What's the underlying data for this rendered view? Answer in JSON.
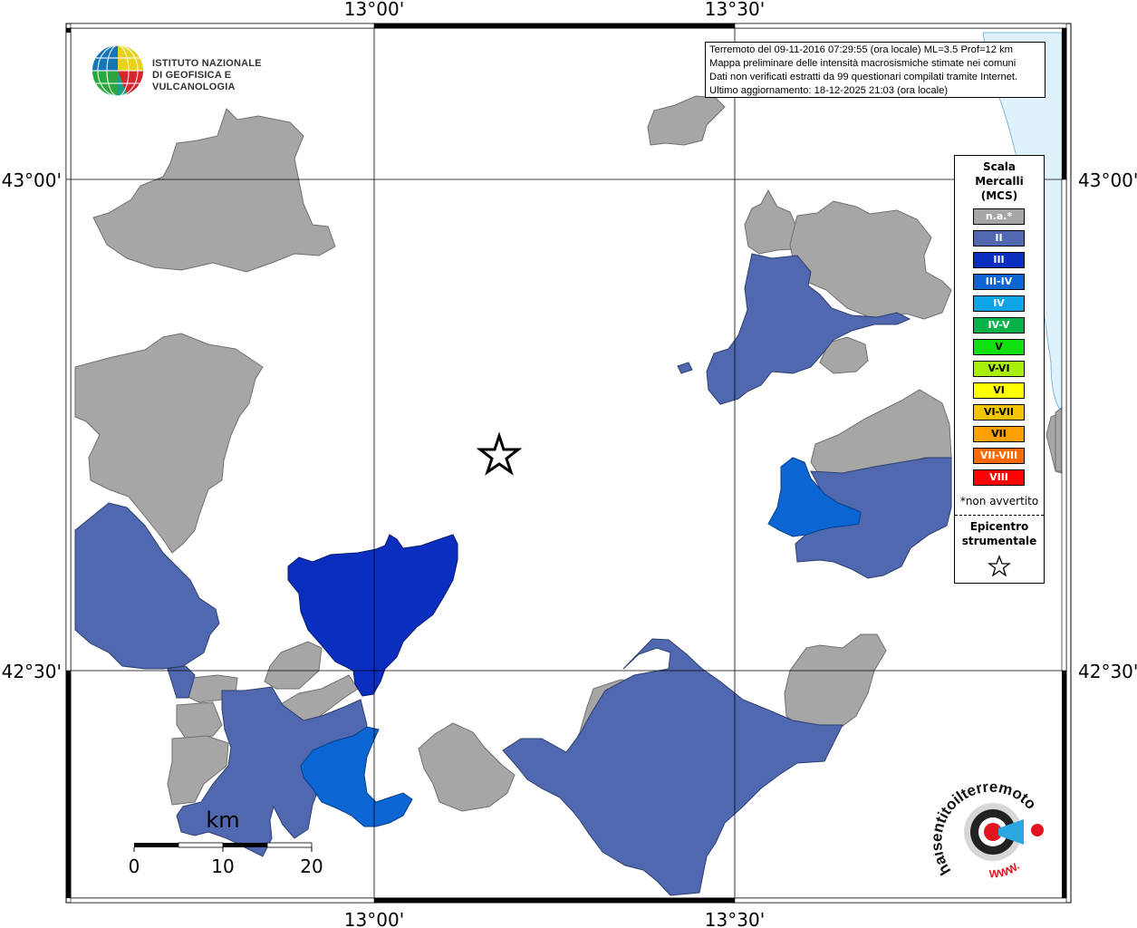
{
  "coords": {
    "top_left": "13°00'",
    "top_right": "13°30'",
    "bottom_left": "13°00'",
    "bottom_right": "13°30'",
    "left_top": "43°00'",
    "left_bottom": "42°30'",
    "right_top": "43°00'",
    "right_bottom": "42°30'"
  },
  "logo": {
    "line1": "ISTITUTO NAZIONALE",
    "line2": "DI GEOFISICA E VULCANOLOGIA"
  },
  "info": {
    "line1": "Terremoto del 09-11-2016 07:29:55 (ora locale) ML=3.5 Prof=12 km",
    "line2": "Mappa preliminare delle intensità macrosismiche stimate nei comuni",
    "line3": "Dati non verificati estratti da 99 questionari compilati tramite Internet.",
    "line4": "Ultimo aggiornamento: 18-12-2025 21:03 (ora locale)"
  },
  "legend": {
    "title_line1": "Scala",
    "title_line2": "Mercalli",
    "title_line3": "(MCS)",
    "items": [
      {
        "label": "n.a.*",
        "color": "#a6a6a6"
      },
      {
        "label": "II",
        "color": "#4f68b0"
      },
      {
        "label": "III",
        "color": "#0a2ec0"
      },
      {
        "label": "III-IV",
        "color": "#0b66d4"
      },
      {
        "label": "IV",
        "color": "#0ea5e8"
      },
      {
        "label": "IV-V",
        "color": "#07b24a"
      },
      {
        "label": "V",
        "color": "#10e010"
      },
      {
        "label": "V-VI",
        "color": "#a8f00c"
      },
      {
        "label": "VI",
        "color": "#ffff00"
      },
      {
        "label": "VI-VII",
        "color": "#f5c400"
      },
      {
        "label": "VII",
        "color": "#ff9f00"
      },
      {
        "label": "VII-VIII",
        "color": "#ff6a00"
      },
      {
        "label": "VIII",
        "color": "#ff0000"
      }
    ],
    "note": "*non avvertito",
    "epi_line1": "Epicentro",
    "epi_line2": "strumentale"
  },
  "scale": {
    "unit": "km",
    "ticks": [
      "0",
      "10",
      "20"
    ]
  },
  "logo2": {
    "text": "haisentitoilterremoto.it",
    "url_text": "WWW."
  },
  "colors": {
    "na": "#a6a6a6",
    "ii": "#4f68b0",
    "iii": "#0a2ec0",
    "iiiiv": "#0b66d4",
    "sea": "#dff1fb"
  }
}
